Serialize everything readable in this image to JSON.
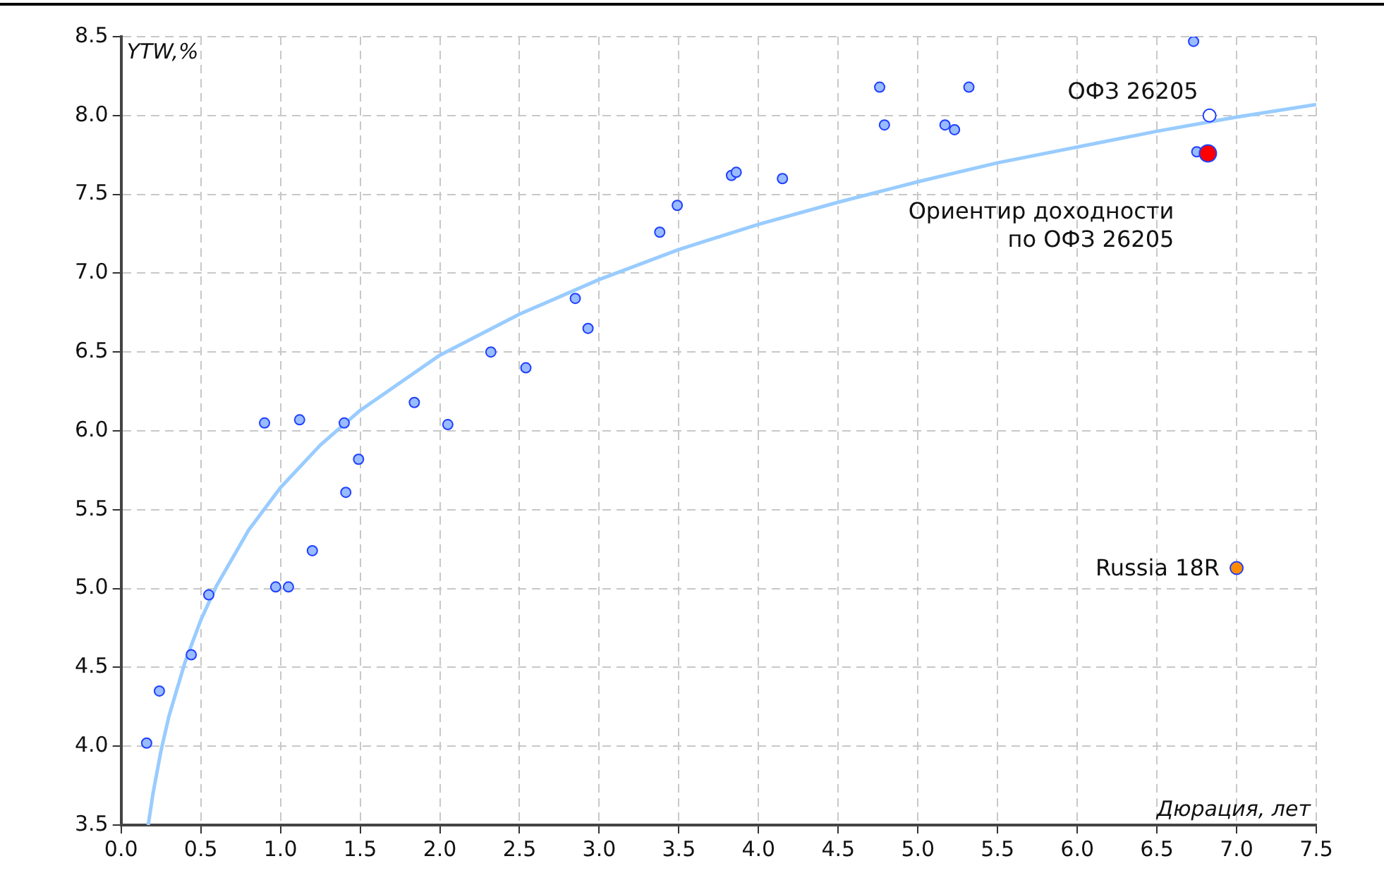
{
  "chart_data": {
    "type": "scatter",
    "xlabel": "Дюрация, лет",
    "ylabel": "YTW,%",
    "xlim": [
      0,
      7.5
    ],
    "ylim": [
      3.5,
      8.5
    ],
    "xticks": [
      {
        "value": 0,
        "label": "0.0"
      },
      0.5,
      {
        "value": 1,
        "label": "1.0"
      },
      1.5,
      {
        "value": 2,
        "label": "2.0"
      },
      2.5,
      {
        "value": 3,
        "label": "3.0"
      },
      3.5,
      {
        "value": 4,
        "label": "4.0"
      },
      4.5,
      {
        "value": 5,
        "label": "5.0"
      },
      5.5,
      {
        "value": 6,
        "label": "6.0"
      },
      6.5,
      {
        "value": 7,
        "label": "7.0"
      },
      7.5
    ],
    "yticks": [
      3.5,
      {
        "value": 4,
        "label": "4.0"
      },
      4.5,
      {
        "value": 5,
        "label": "5.0"
      },
      5.5,
      {
        "value": 6,
        "label": "6.0"
      },
      6.5,
      {
        "value": 7,
        "label": "7.0"
      },
      7.5,
      {
        "value": 8,
        "label": "8.0"
      },
      8.5
    ],
    "grid": true,
    "legend": false,
    "marker": "circle",
    "series": [
      {
        "type": "line",
        "color": "#99ccff",
        "marker": "none",
        "x": [
          0.17,
          0.2,
          0.25,
          0.3,
          0.4,
          0.5,
          0.6,
          0.8,
          1,
          1.25,
          1.5,
          2,
          2.5,
          3,
          3.5,
          4,
          4.5,
          5,
          5.5,
          6,
          6.5,
          7,
          7.5
        ],
        "values": [
          3.5,
          3.7,
          3.97,
          4.19,
          4.53,
          4.8,
          5.02,
          5.37,
          5.64,
          5.91,
          6.13,
          6.48,
          6.74,
          6.96,
          7.15,
          7.31,
          7.45,
          7.58,
          7.7,
          7.8,
          7.9,
          7.99,
          8.07
        ]
      },
      {
        "color": "#99bbff",
        "x": [
          0.16,
          0.24,
          0.44,
          0.55,
          0.9,
          0.97,
          1.05,
          1.12,
          1.2,
          1.4,
          1.41,
          1.49,
          1.84,
          2.05,
          2.32,
          2.54,
          2.85,
          2.93,
          3.38,
          3.49,
          3.83,
          3.86,
          4.15,
          4.76,
          4.79,
          5.17,
          5.23,
          5.32,
          6.73,
          6.75
        ],
        "values": [
          4.02,
          4.35,
          4.58,
          4.96,
          6.05,
          5.01,
          5.01,
          6.07,
          5.24,
          6.05,
          5.61,
          5.82,
          6.18,
          6.04,
          6.5,
          6.4,
          6.84,
          6.65,
          7.26,
          7.43,
          7.62,
          7.64,
          7.6,
          8.18,
          7.94,
          7.94,
          7.91,
          8.18,
          8.47,
          7.77
        ]
      },
      {
        "name": "ОФЗ 26205",
        "color": "#ffffff",
        "x": [
          6.83
        ],
        "values": [
          8.0
        ]
      },
      {
        "name": "Ориентир доходности\nпо ОФЗ 26205",
        "color": "#ff0000",
        "x": [
          6.82
        ],
        "values": [
          7.76
        ]
      },
      {
        "name": "Russia 18R",
        "color": "#ff8c00",
        "x": [
          7.0
        ],
        "values": [
          5.13
        ]
      }
    ]
  }
}
